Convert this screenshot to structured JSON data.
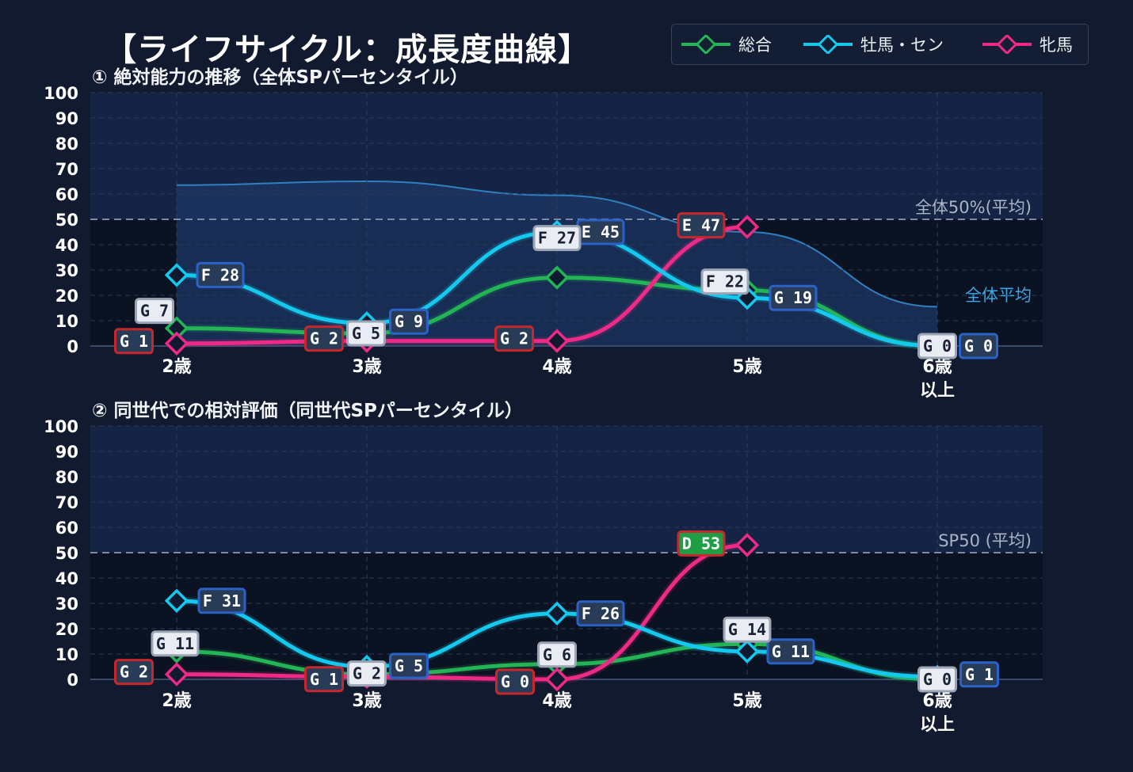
{
  "title": "【ライフサイクル：成長度曲線】",
  "legend": [
    {
      "name": "総合",
      "color": "#22b455"
    },
    {
      "name": "牡馬・セン",
      "color": "#14c8ee"
    },
    {
      "name": "牝馬",
      "color": "#ef2a86"
    }
  ],
  "chart_data": [
    {
      "type": "line",
      "title": "① 絶対能力の推移（全体SPパーセンタイル）",
      "categories": [
        "2歳",
        "3歳",
        "4歳",
        "5歳",
        "6歳\n以上"
      ],
      "ylim": [
        0,
        100
      ],
      "yticks": [
        0,
        10,
        20,
        30,
        40,
        50,
        60,
        70,
        80,
        90,
        100
      ],
      "grid": true,
      "reference_line": {
        "value": 50,
        "label": "全体50%(平均)"
      },
      "average_band": {
        "label": "全体平均",
        "values": [
          63.5,
          65,
          59.5,
          45,
          15.5
        ]
      },
      "series": [
        {
          "name": "総合",
          "values": [
            7,
            5,
            27,
            22,
            0
          ],
          "labels": [
            "G 7",
            "G 5",
            "F 27",
            "F 22",
            "G 0"
          ]
        },
        {
          "name": "牡馬・セン",
          "values": [
            28,
            9,
            45,
            19,
            0
          ],
          "labels": [
            "F 28",
            "G 9",
            "E 45",
            "G 19",
            "G 0"
          ]
        },
        {
          "name": "牝馬",
          "values": [
            1,
            2,
            2,
            47,
            null
          ],
          "labels": [
            "G 1",
            "G 2",
            "G 2",
            "E 47",
            null
          ]
        }
      ]
    },
    {
      "type": "line",
      "title": "② 同世代での相対評価（同世代SPパーセンタイル）",
      "categories": [
        "2歳",
        "3歳",
        "4歳",
        "5歳",
        "6歳\n以上"
      ],
      "ylim": [
        0,
        100
      ],
      "yticks": [
        0,
        10,
        20,
        30,
        40,
        50,
        60,
        70,
        80,
        90,
        100
      ],
      "grid": true,
      "reference_line": {
        "value": 50,
        "label": "SP50 (平均)"
      },
      "series": [
        {
          "name": "総合",
          "values": [
            11,
            2,
            6,
            14,
            0
          ],
          "labels": [
            "G 11",
            "G 2",
            "G 6",
            "G 14",
            "G 0"
          ]
        },
        {
          "name": "牡馬・セン",
          "values": [
            31,
            5,
            26,
            11,
            1
          ],
          "labels": [
            "F 31",
            "G 5",
            "F 26",
            "G 11",
            "G 1"
          ]
        },
        {
          "name": "牝馬",
          "values": [
            2,
            1,
            0,
            53,
            null
          ],
          "labels": [
            "G 2",
            "G 1",
            "G 0",
            "D 53",
            null
          ]
        }
      ]
    }
  ]
}
